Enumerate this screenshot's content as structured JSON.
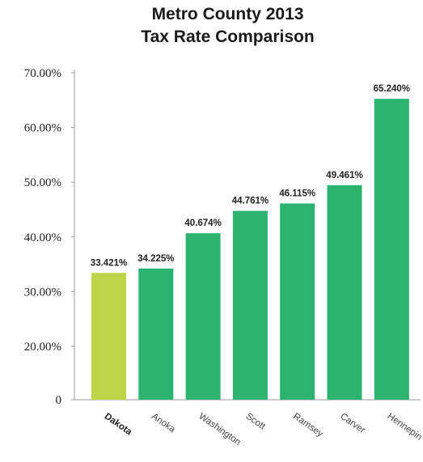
{
  "chart_data": {
    "type": "bar",
    "title": [
      "Metro County 2013",
      "Tax Rate Comparison"
    ],
    "xlabel": "",
    "ylabel": "",
    "ylim": [
      0,
      70
    ],
    "y_ticks": [
      {
        "value": 0,
        "label": "0"
      },
      {
        "value": 20,
        "label": "20.00%"
      },
      {
        "value": 30,
        "label": "30.00%"
      },
      {
        "value": 40,
        "label": "40.00%"
      },
      {
        "value": 50,
        "label": "50.00%"
      },
      {
        "value": 60,
        "label": "60.00%"
      },
      {
        "value": 70,
        "label": "70.00%"
      }
    ],
    "categories": [
      "Dakota",
      "Anoka",
      "Washington",
      "Scott",
      "Ramsey",
      "Carver",
      "Hennepin"
    ],
    "values": [
      33.421,
      34.225,
      40.674,
      44.761,
      46.115,
      49.461,
      65.24
    ],
    "value_labels": [
      "33.421%",
      "34.225%",
      "40.674%",
      "44.761%",
      "46.115%",
      "49.461%",
      "65.240%"
    ],
    "highlight_category": "Dakota",
    "grid": false,
    "colors": {
      "bar": "#2bb36f",
      "highlight": "#bdd448",
      "axis": "#999999"
    }
  }
}
